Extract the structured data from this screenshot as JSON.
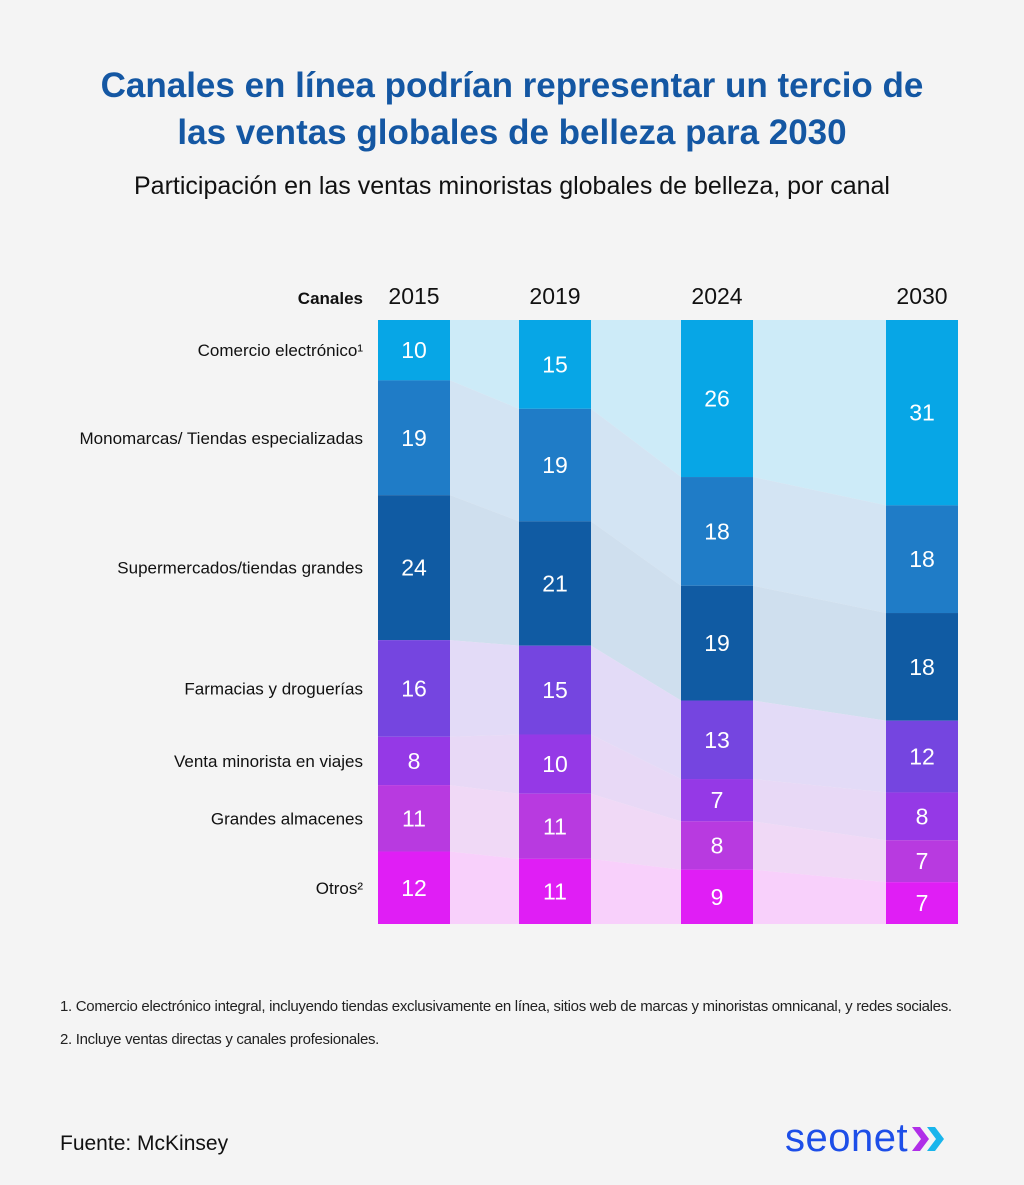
{
  "title_line1": "Canales en línea podrían representar un tercio de",
  "title_line2": "las ventas globales de belleza para 2030",
  "subtitle": "Participación en las ventas minoristas globales de belleza, por canal",
  "chart_data": {
    "type": "bar",
    "stacked": true,
    "column_header": "Canales",
    "categories": [
      "2015",
      "2019",
      "2024",
      "2030"
    ],
    "series": [
      {
        "name": "Comercio electrónico¹",
        "color": "#07a6e6",
        "flow_color": "#cdebf8",
        "values": [
          10,
          15,
          26,
          31
        ]
      },
      {
        "name": "Monomarcas/ Tiendas especializadas",
        "color": "#1f7cc7",
        "flow_color": "#d3e4f3",
        "values": [
          19,
          19,
          18,
          18
        ]
      },
      {
        "name": "Supermercados/tiendas grandes",
        "color": "#105ba3",
        "flow_color": "#cfdfee",
        "values": [
          24,
          21,
          19,
          18
        ]
      },
      {
        "name": "Farmacias y droguerías",
        "color": "#7545e0",
        "flow_color": "#e3dbf7",
        "values": [
          16,
          15,
          13,
          12
        ]
      },
      {
        "name": "Venta minorista en viajes",
        "color": "#9539e6",
        "flow_color": "#e8d9f6",
        "values": [
          8,
          10,
          7,
          8
        ]
      },
      {
        "name": "Grandes almacenes",
        "color": "#b83ae0",
        "flow_color": "#f0d9f6",
        "values": [
          11,
          11,
          8,
          7
        ]
      },
      {
        "name": "Otros²",
        "color": "#e01ef5",
        "flow_color": "#f8d0fb",
        "values": [
          12,
          11,
          9,
          7
        ]
      }
    ]
  },
  "footnotes": [
    "1.  Comercio electrónico integral, incluyendo tiendas exclusivamente en línea, sitios web de marcas y minoristas omnicanal, y redes sociales.",
    "2. Incluye ventas directas y canales profesionales."
  ],
  "source": "Fuente: McKinsey",
  "logo_text": "seonet"
}
